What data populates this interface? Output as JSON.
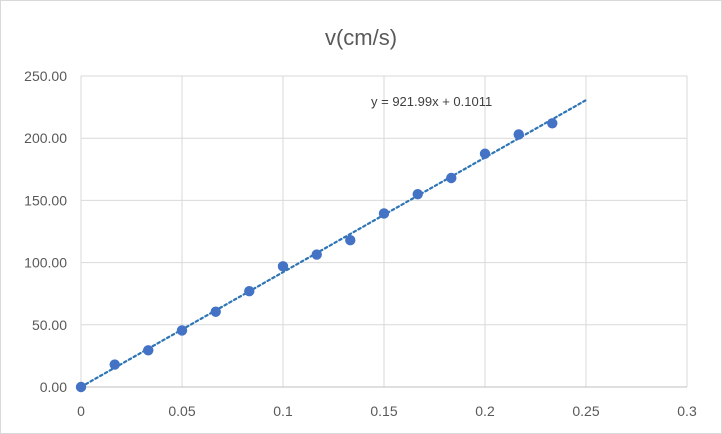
{
  "chart_data": {
    "type": "scatter",
    "title": "v(cm/s)",
    "xlabel": "",
    "ylabel": "",
    "xlim": [
      0,
      0.3
    ],
    "ylim": [
      0,
      250
    ],
    "x_ticks": [
      "0",
      "0.05",
      "0.1",
      "0.15",
      "0.2",
      "0.25",
      "0.3"
    ],
    "y_ticks": [
      "0.00",
      "50.00",
      "100.00",
      "150.00",
      "200.00",
      "250.00"
    ],
    "grid": true,
    "legend": "none",
    "series": [
      {
        "color": "#4472c4",
        "x": [
          0,
          0.0167,
          0.0333,
          0.05,
          0.0667,
          0.0833,
          0.1,
          0.1167,
          0.1333,
          0.15,
          0.1667,
          0.1833,
          0.2,
          0.2167,
          0.2333
        ],
        "y": [
          0,
          18,
          29.5,
          45.5,
          60.5,
          77,
          97,
          106.5,
          118,
          139.5,
          155,
          168,
          187.5,
          203,
          212
        ]
      }
    ],
    "trendline": {
      "type": "linear",
      "slope": 921.99,
      "intercept": 0.1011,
      "x_range": [
        0,
        0.25
      ],
      "equation": "y = 921.99x + 0.1011",
      "color": "#2e75b6"
    }
  }
}
